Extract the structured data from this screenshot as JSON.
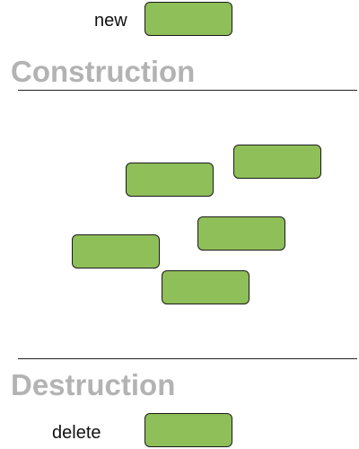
{
  "new_keyword": "new",
  "delete_keyword": "delete",
  "sections": {
    "construction_title": "Construction",
    "destruction_title": "Destruction"
  },
  "colors": {
    "object_fill": "#8fbf59",
    "section_title": "#b3b3b3",
    "rule": "#222222"
  }
}
